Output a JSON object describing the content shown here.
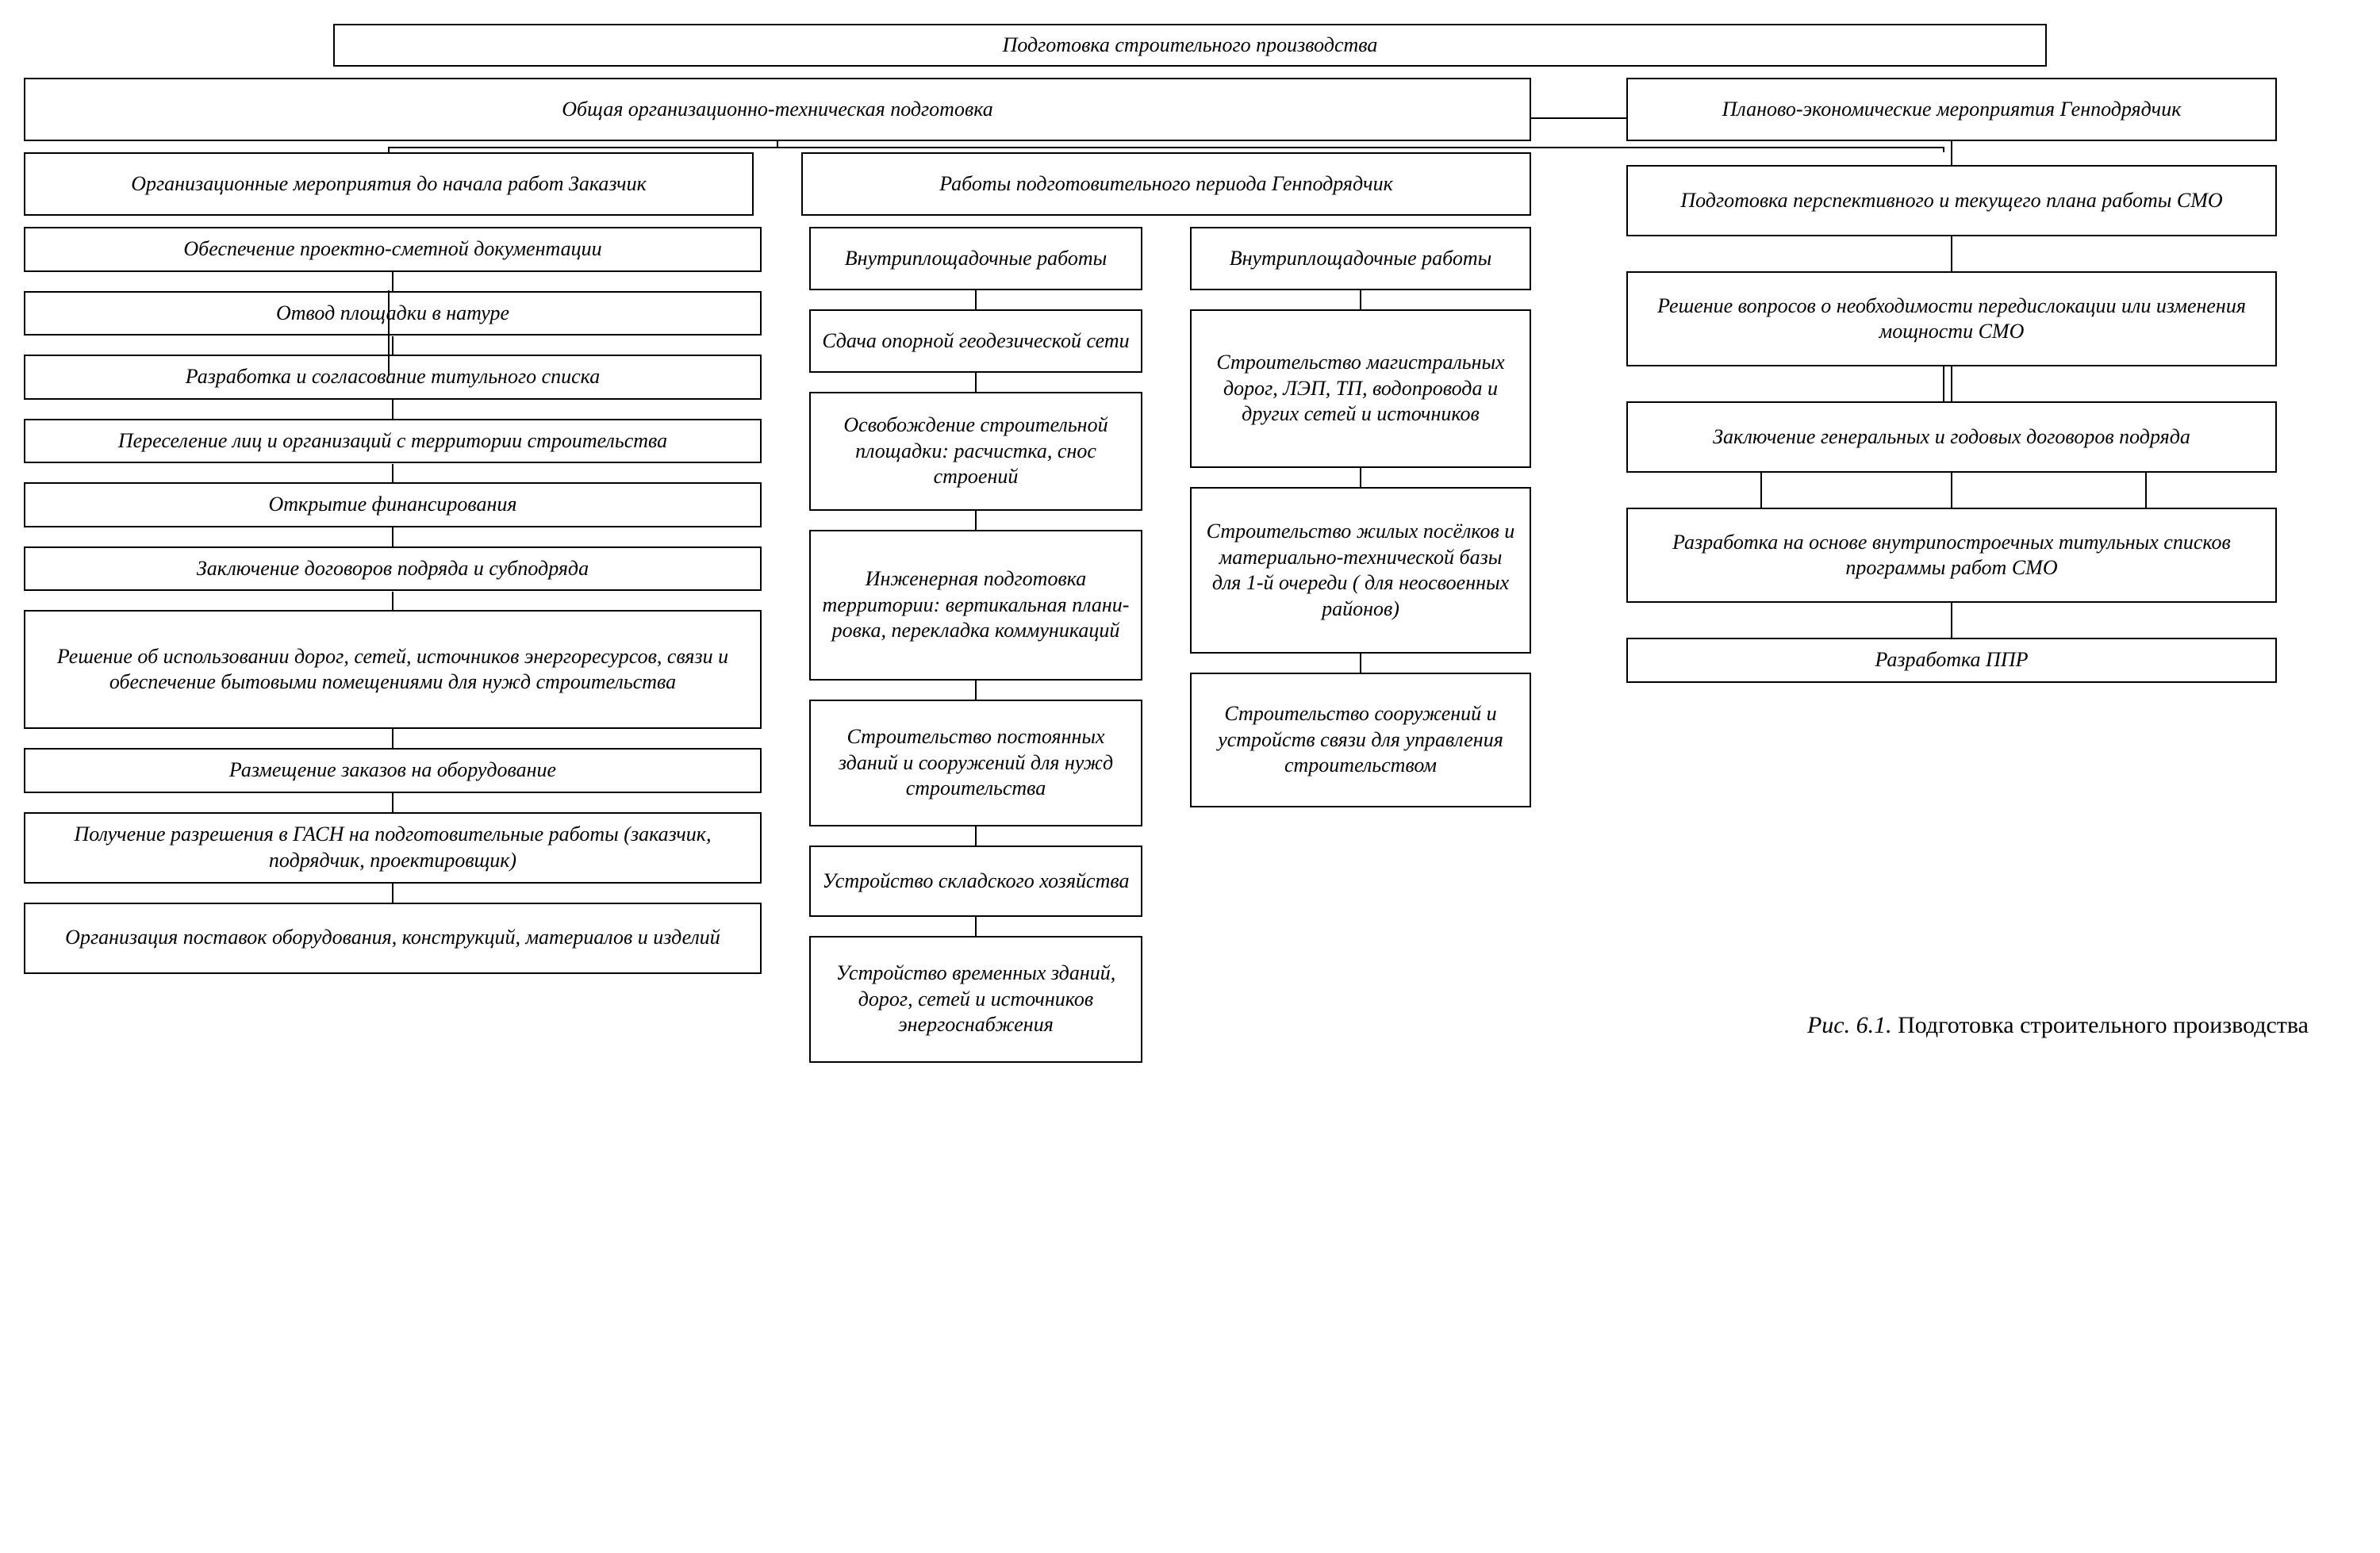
{
  "type": "tree",
  "colors": {
    "border": "#000000",
    "background": "#ffffff",
    "text": "#000000"
  },
  "font": {
    "family": "Times New Roman",
    "style": "italic",
    "size_pt": 20
  },
  "root": "Подготовка строительного производства",
  "branch_left": {
    "title": "Общая организационно-техническая подготовка",
    "sub_left": {
      "title": "Организационные мероприятия до начала работ Заказчик",
      "items": [
        "Обеспечение проектно-сметной документации",
        "Отвод площадки в натуре",
        "Разработка и согласование титульного списка",
        "Переселение лиц и организаций с терри­тории строительства",
        "Открытие финансирования",
        "Заключение договоров подряда и субподряда",
        "Решение об использовании дорог, сетей, источников энергоресурсов, связи и обеспечение бытовыми помещениями для нужд строительства",
        "Размещение заказов на оборудование",
        "Получение разрешения в ГАСН на подготовитель­ные работы (заказчик, подрядчик, проектировщик)",
        "Организация поставок оборудования, конструкций, материалов и изделий"
      ]
    },
    "sub_right": {
      "title": "Работы подготовительного периода Генподрядчик",
      "col_b_title": "Внутриплощадочные работы",
      "col_b_items": [
        "Сдача опорной геодезической сети",
        "Освобождение стро­ительной площадки: расчистка, снос строений",
        "Инженерная подго­товка территории: вертикальная плани­ровка, перекладка коммуникаций",
        "Строительство постоянных зданий и сооружений для нужд строительства",
        "Устройство склад­ского хозяйства",
        "Устройство времен­ных зданий, дорог, сетей и источников энергоснабжения"
      ],
      "col_c_title": "Внутриплощадочные работы",
      "col_c_items": [
        "Строительство магистральных дорог, ЛЭП, ТП, водопровода и других сетей и источников",
        "Строительство жилых посёлков и материально-технической базы для 1-й очереди ( для неосвоенных районов)",
        "Строительство соору­жений и устройств связи для управления строительством"
      ]
    }
  },
  "branch_right": {
    "title": "Планово-экономические мероприятия Генподрядчик",
    "items": [
      "Подготовка перспективного и текущего плана работы СМО",
      "Решение вопросов о необходимости передислокации или изменения мощности СМО",
      "Заключение генеральных и годовых договоров подряда",
      "Разработка на основе внутри­построечных титульных списков программы работ СМО",
      "Разработка ППР"
    ]
  },
  "caption_label": "Рис. 6.1.",
  "caption_text": "Подготовка строительного производства"
}
